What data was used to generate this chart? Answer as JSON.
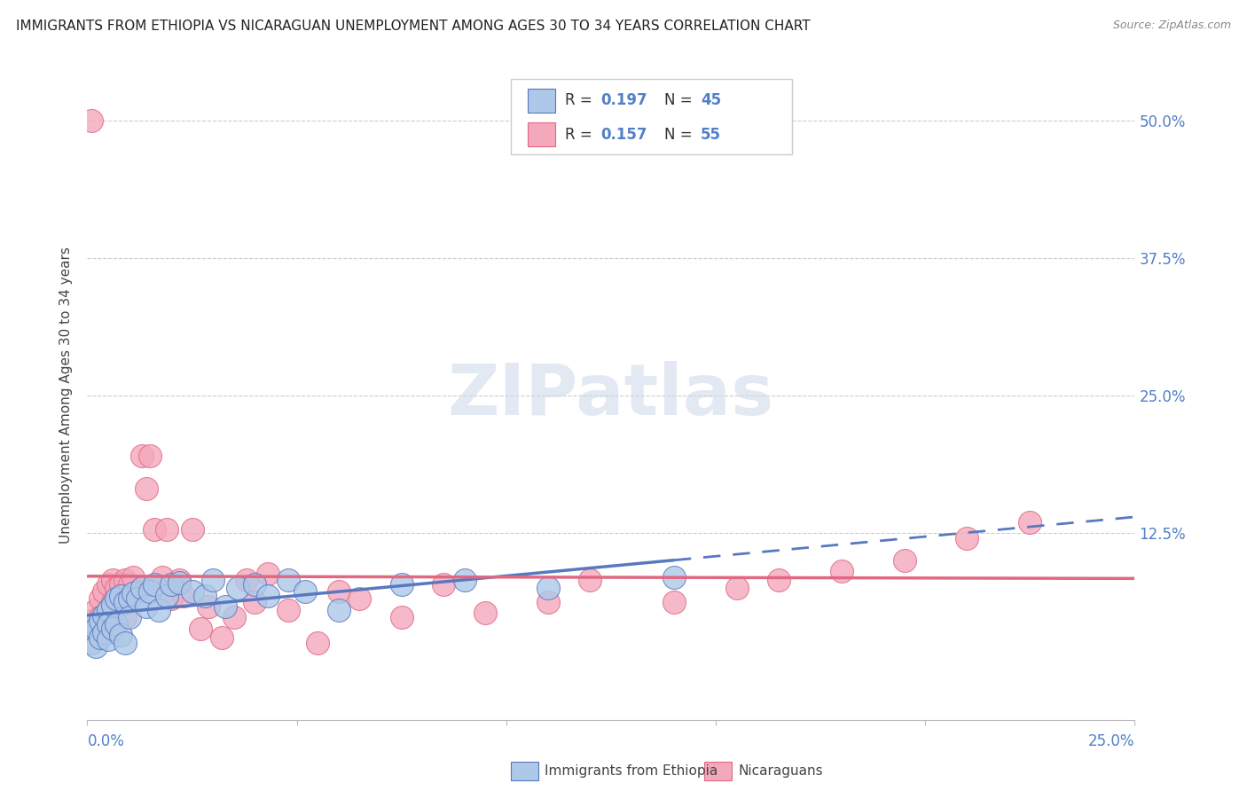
{
  "title": "IMMIGRANTS FROM ETHIOPIA VS NICARAGUAN UNEMPLOYMENT AMONG AGES 30 TO 34 YEARS CORRELATION CHART",
  "source": "Source: ZipAtlas.com",
  "ylabel": "Unemployment Among Ages 30 to 34 years",
  "ytick_vals": [
    0.0,
    0.125,
    0.25,
    0.375,
    0.5
  ],
  "ytick_labels": [
    "",
    "12.5%",
    "25.0%",
    "37.5%",
    "50.0%"
  ],
  "xtick_vals": [
    0.0,
    0.05,
    0.1,
    0.15,
    0.2,
    0.25
  ],
  "xlim": [
    0.0,
    0.25
  ],
  "ylim": [
    -0.045,
    0.545
  ],
  "R_ethiopia": 0.197,
  "N_ethiopia": 45,
  "R_nicaragua": 0.157,
  "N_nicaragua": 55,
  "color_ethiopia": "#adc8e8",
  "color_nicaragua": "#f4a8bc",
  "trend_color_ethiopia": "#5878c0",
  "trend_color_nicaragua": "#e06882",
  "legend_label_ethiopia": "Immigrants from Ethiopia",
  "legend_label_nicaragua": "Nicaraguans",
  "watermark": "ZIPatlas",
  "scatter_ethiopia_x": [
    0.001,
    0.001,
    0.002,
    0.002,
    0.003,
    0.003,
    0.004,
    0.004,
    0.005,
    0.005,
    0.005,
    0.006,
    0.006,
    0.007,
    0.007,
    0.008,
    0.008,
    0.009,
    0.009,
    0.01,
    0.01,
    0.011,
    0.012,
    0.013,
    0.014,
    0.015,
    0.016,
    0.017,
    0.019,
    0.02,
    0.022,
    0.025,
    0.028,
    0.03,
    0.033,
    0.036,
    0.04,
    0.043,
    0.048,
    0.052,
    0.06,
    0.075,
    0.09,
    0.11,
    0.14
  ],
  "scatter_ethiopia_y": [
    0.04,
    0.025,
    0.038,
    0.022,
    0.045,
    0.03,
    0.05,
    0.035,
    0.055,
    0.042,
    0.028,
    0.06,
    0.038,
    0.065,
    0.042,
    0.068,
    0.032,
    0.062,
    0.025,
    0.065,
    0.048,
    0.07,
    0.065,
    0.075,
    0.058,
    0.072,
    0.078,
    0.055,
    0.068,
    0.078,
    0.08,
    0.072,
    0.068,
    0.082,
    0.058,
    0.075,
    0.078,
    0.068,
    0.082,
    0.072,
    0.055,
    0.078,
    0.082,
    0.075,
    0.085
  ],
  "scatter_nicaragua_x": [
    0.001,
    0.001,
    0.002,
    0.002,
    0.003,
    0.003,
    0.004,
    0.004,
    0.005,
    0.005,
    0.006,
    0.006,
    0.007,
    0.007,
    0.008,
    0.008,
    0.009,
    0.009,
    0.01,
    0.01,
    0.011,
    0.012,
    0.013,
    0.014,
    0.015,
    0.016,
    0.018,
    0.019,
    0.02,
    0.022,
    0.023,
    0.025,
    0.027,
    0.029,
    0.032,
    0.035,
    0.038,
    0.04,
    0.043,
    0.048,
    0.055,
    0.06,
    0.065,
    0.075,
    0.085,
    0.095,
    0.11,
    0.12,
    0.14,
    0.155,
    0.165,
    0.18,
    0.195,
    0.21,
    0.225
  ],
  "scatter_nicaragua_y": [
    0.5,
    0.045,
    0.055,
    0.038,
    0.065,
    0.048,
    0.072,
    0.038,
    0.078,
    0.055,
    0.082,
    0.062,
    0.075,
    0.058,
    0.078,
    0.062,
    0.082,
    0.048,
    0.078,
    0.065,
    0.085,
    0.072,
    0.195,
    0.165,
    0.195,
    0.128,
    0.085,
    0.128,
    0.065,
    0.082,
    0.068,
    0.128,
    0.038,
    0.058,
    0.03,
    0.048,
    0.082,
    0.062,
    0.088,
    0.055,
    0.025,
    0.072,
    0.065,
    0.048,
    0.078,
    0.052,
    0.062,
    0.082,
    0.062,
    0.075,
    0.082,
    0.09,
    0.1,
    0.12,
    0.135
  ]
}
